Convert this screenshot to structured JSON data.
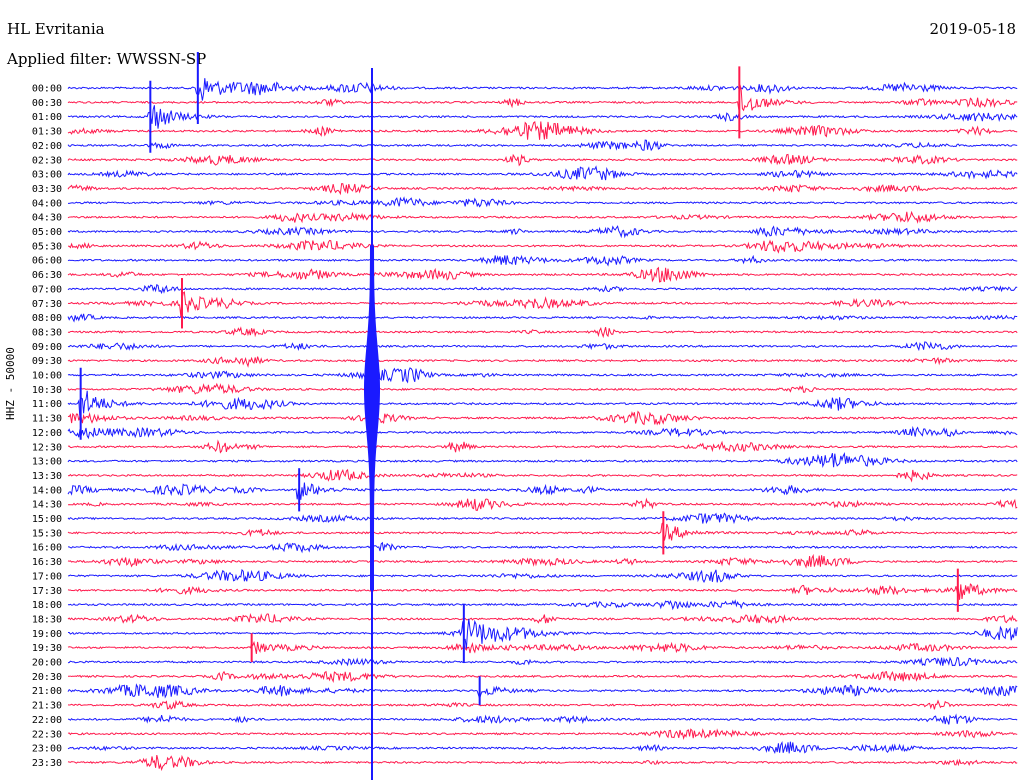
{
  "header": {
    "station": "HL Evritania",
    "date": "2019-05-18",
    "filter_label": "Applied filter: WWSSN-SP",
    "channel_label": "HHZ - 50000"
  },
  "colors": {
    "blue": "#1a1aff",
    "red": "#ff1a4d"
  },
  "chart_data": {
    "type": "line",
    "title": "HL Evritania",
    "subtitle": "Applied filter: WWSSN-SP",
    "ylabel": "HHZ - 50000",
    "rows": [
      "00:00",
      "00:30",
      "01:00",
      "01:30",
      "02:00",
      "02:30",
      "03:00",
      "03:30",
      "04:00",
      "04:30",
      "05:00",
      "05:30",
      "06:00",
      "06:30",
      "07:00",
      "07:30",
      "08:00",
      "08:30",
      "09:00",
      "09:30",
      "10:00",
      "10:30",
      "11:00",
      "11:30",
      "12:00",
      "12:30",
      "13:00",
      "13:30",
      "14:00",
      "14:30",
      "15:00",
      "15:30",
      "16:00",
      "16:30",
      "17:00",
      "17:30",
      "18:00",
      "18:30",
      "19:00",
      "19:30",
      "20:00",
      "20:30",
      "21:00",
      "21:30",
      "22:00",
      "22:30",
      "23:00",
      "23:30"
    ],
    "series": [
      {
        "color": "blue",
        "rows": "even"
      },
      {
        "color": "red",
        "rows": "odd"
      }
    ],
    "x_minutes_per_row": 30,
    "events": [
      {
        "row": 2,
        "minute": 2.6,
        "amplitude": 1.0
      },
      {
        "row": 1,
        "minute": 21.2,
        "amplitude": 1.0
      },
      {
        "row": 0,
        "minute": 4.1,
        "amplitude": 1.0
      },
      {
        "row": 15,
        "minute": 3.6,
        "amplitude": 0.7
      },
      {
        "row": 22,
        "minute": 0.4,
        "amplitude": 1.0
      },
      {
        "row": 28,
        "minute": 7.3,
        "amplitude": 0.6
      },
      {
        "row": 31,
        "minute": 18.8,
        "amplitude": 0.6
      },
      {
        "row": 35,
        "minute": 28.1,
        "amplitude": 0.6
      },
      {
        "row": 38,
        "minute": 12.5,
        "amplitude": 0.8
      },
      {
        "row": 42,
        "minute": 13.0,
        "amplitude": 0.4
      },
      {
        "row": 39,
        "minute": 5.8,
        "amplitude": 0.4
      }
    ]
  }
}
